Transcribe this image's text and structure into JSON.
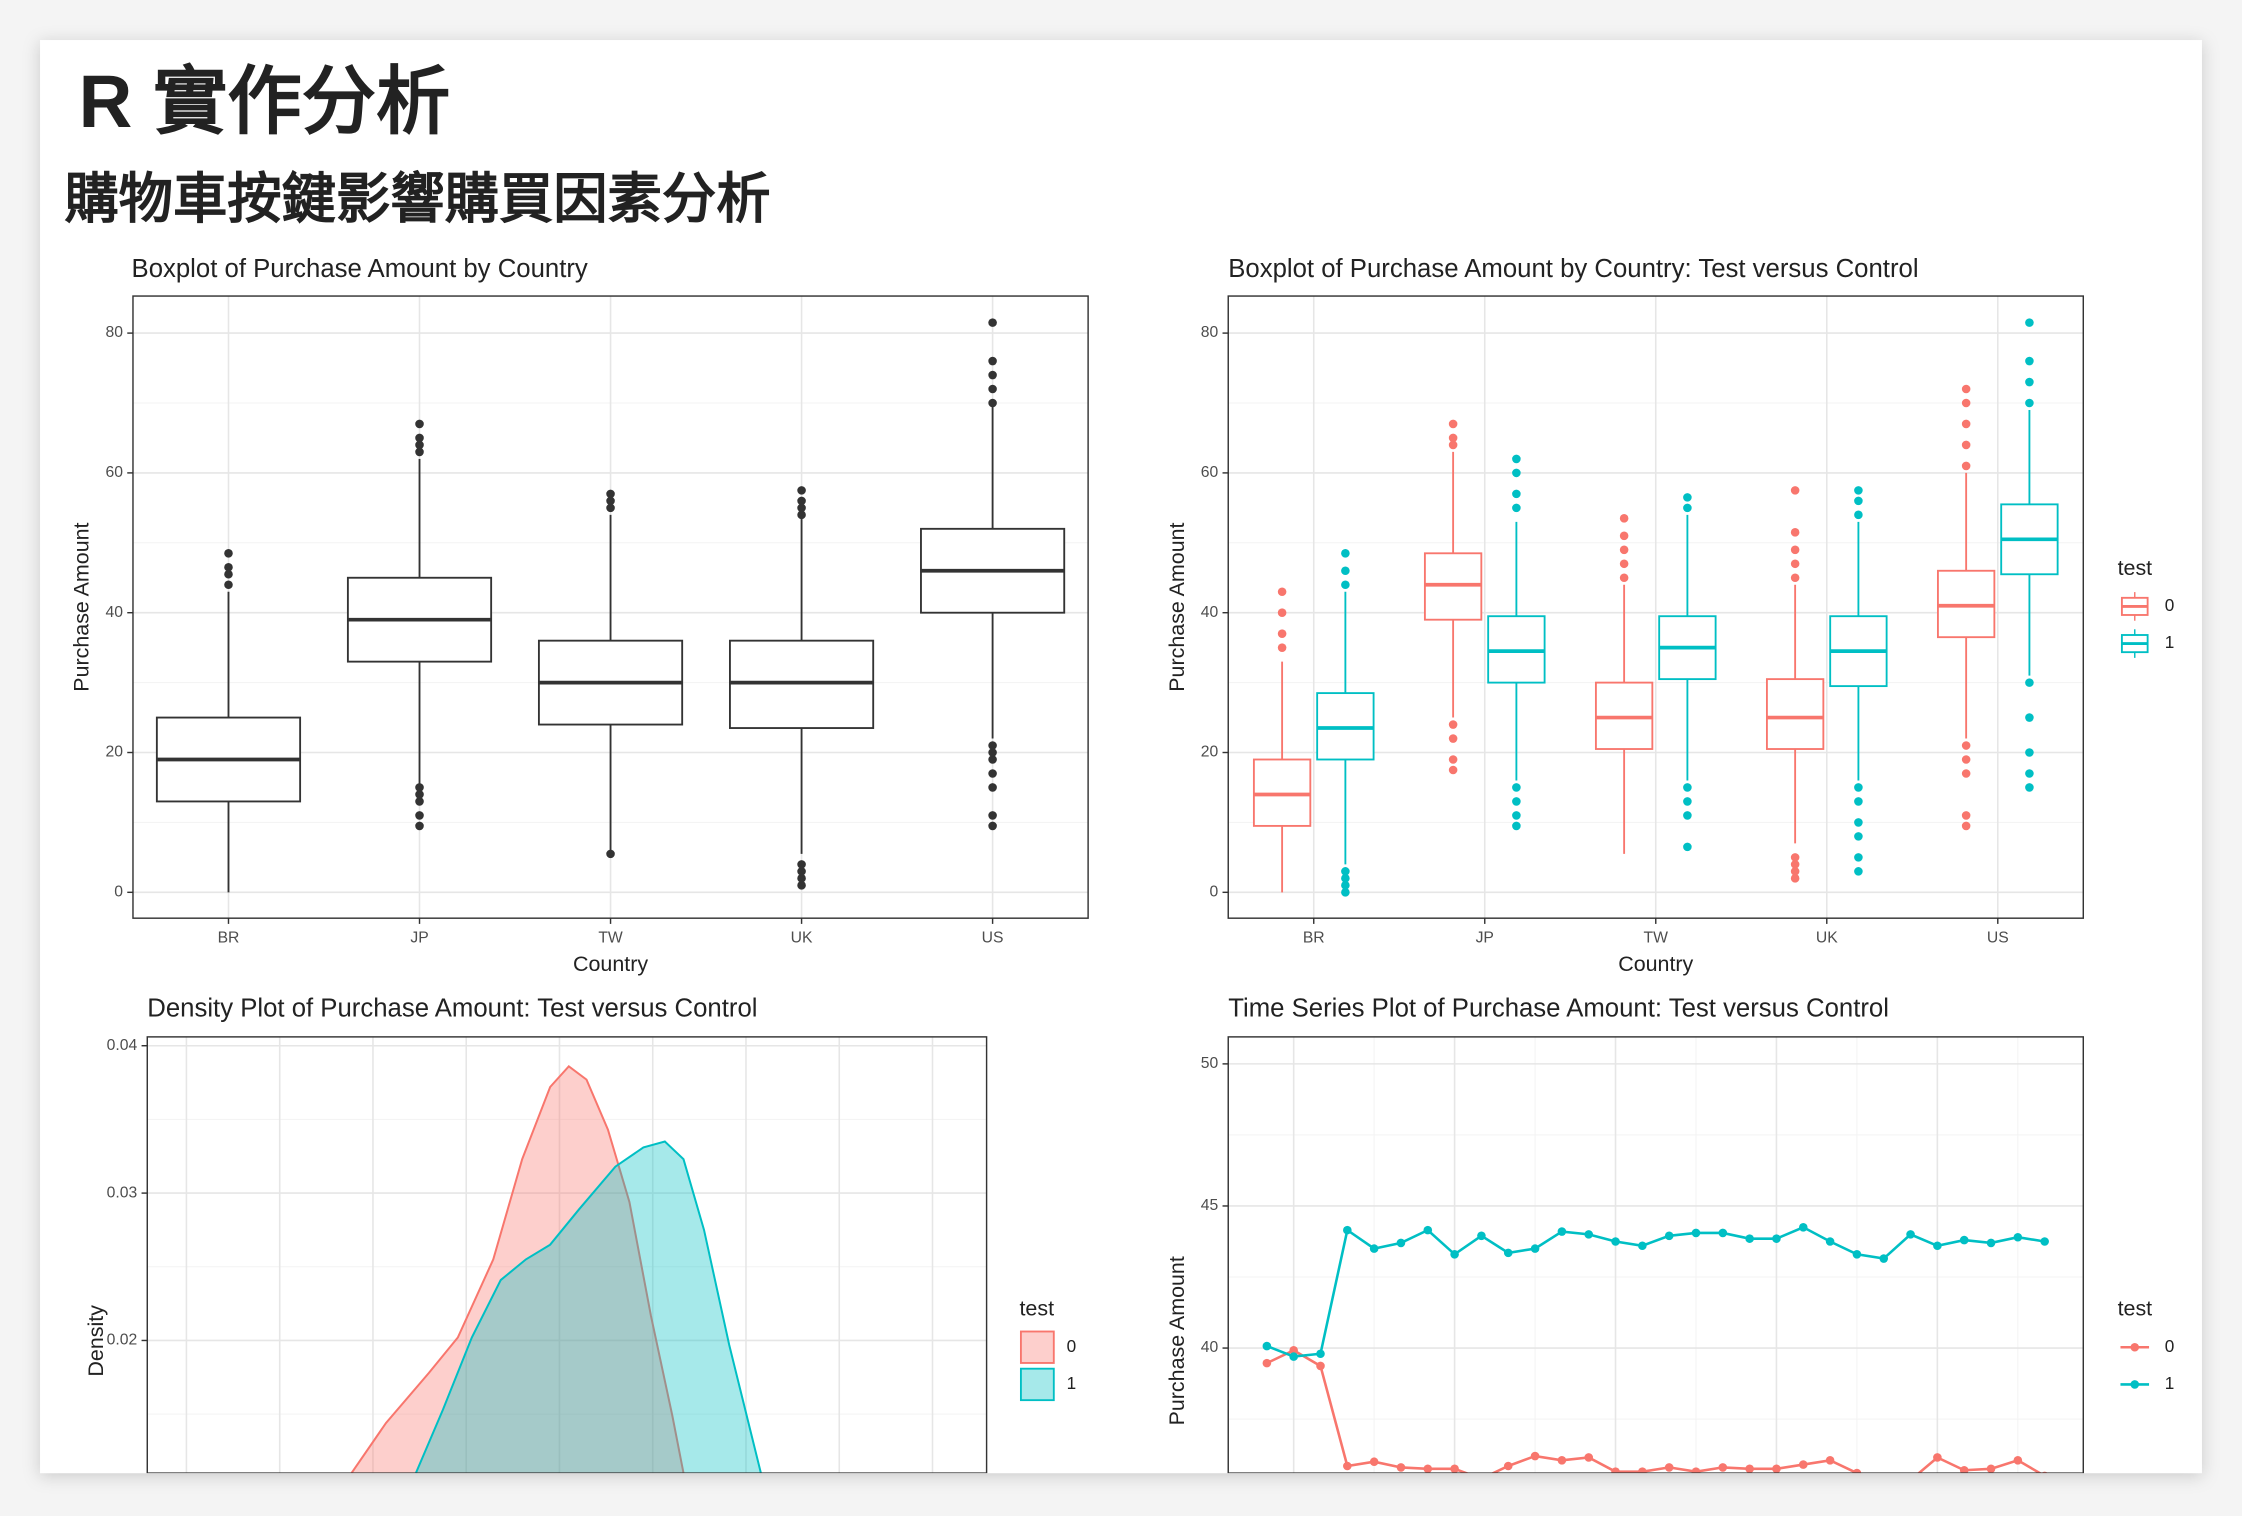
{
  "slide": {
    "title": "R 實作分析",
    "subtitle": "購物車按鍵影響購買因素分析"
  },
  "chart_data": [
    {
      "type": "boxplot",
      "title": "Boxplot of Purchase Amount by Country",
      "x_label": "Country",
      "y_label": "Purchase Amount",
      "categories": [
        "BR",
        "JP",
        "TW",
        "UK",
        "US"
      ],
      "ylim": [
        -3.7,
        85.3
      ],
      "yticks": [
        0,
        20,
        40,
        60,
        80
      ],
      "yminor": [
        10,
        30,
        50,
        70
      ],
      "series": [
        {
          "color": "#333333",
          "boxes": [
            {
              "min": 0,
              "q1": 13,
              "median": 19,
              "q3": 25,
              "max": 43,
              "outliers": [
                44,
                45.5,
                46.5,
                48.5
              ]
            },
            {
              "min": 15,
              "q1": 33,
              "median": 39,
              "q3": 45,
              "max": 62,
              "outliers": [
                9.5,
                11,
                13,
                14,
                15,
                63,
                64,
                65,
                67
              ]
            },
            {
              "min": 6,
              "q1": 24,
              "median": 30,
              "q3": 36,
              "max": 54,
              "outliers": [
                5.5,
                55,
                56,
                57
              ]
            },
            {
              "min": 5.5,
              "q1": 23.5,
              "median": 30,
              "q3": 36,
              "max": 53.5,
              "outliers": [
                1,
                2,
                3,
                4,
                54,
                55,
                56,
                57.5
              ]
            },
            {
              "min": 22,
              "q1": 40,
              "median": 46,
              "q3": 52,
              "max": 69.5,
              "outliers": [
                9.5,
                11,
                15,
                17,
                19,
                20,
                21,
                70,
                72,
                74,
                76,
                81.5
              ]
            }
          ]
        }
      ]
    },
    {
      "type": "boxplot",
      "title": "Boxplot of Purchase Amount by Country: Test versus Control",
      "x_label": "Country",
      "y_label": "Purchase Amount",
      "categories": [
        "BR",
        "JP",
        "TW",
        "UK",
        "US"
      ],
      "legend_title": "test",
      "ylim": [
        -3.7,
        85.3
      ],
      "yticks": [
        0,
        20,
        40,
        60,
        80
      ],
      "yminor": [
        10,
        30,
        50,
        70
      ],
      "series": [
        {
          "name": "0",
          "color": "#F8766D",
          "boxes": [
            {
              "min": 0,
              "q1": 9.5,
              "median": 14,
              "q3": 19,
              "max": 33,
              "outliers": [
                35,
                37,
                40,
                43
              ]
            },
            {
              "min": 25,
              "q1": 39,
              "median": 44,
              "q3": 48.5,
              "max": 63,
              "outliers": [
                17.5,
                19,
                22,
                24,
                64,
                65,
                67
              ]
            },
            {
              "min": 5.5,
              "q1": 20.5,
              "median": 25,
              "q3": 30,
              "max": 44,
              "outliers": [
                45,
                47,
                49,
                51,
                53.5
              ]
            },
            {
              "min": 7,
              "q1": 20.5,
              "median": 25,
              "q3": 30.5,
              "max": 44,
              "outliers": [
                2,
                3,
                4,
                5,
                45,
                47,
                49,
                51.5,
                57.5
              ]
            },
            {
              "min": 22,
              "q1": 36.5,
              "median": 41,
              "q3": 46,
              "max": 60,
              "outliers": [
                9.5,
                11,
                17,
                19,
                21,
                61,
                64,
                67,
                70,
                72
              ]
            }
          ]
        },
        {
          "name": "1",
          "color": "#00BFC4",
          "boxes": [
            {
              "min": 4,
              "q1": 19,
              "median": 23.5,
              "q3": 28.5,
              "max": 43,
              "outliers": [
                0,
                1,
                2,
                3,
                44,
                46,
                48.5
              ]
            },
            {
              "min": 16,
              "q1": 30,
              "median": 34.5,
              "q3": 39.5,
              "max": 53,
              "outliers": [
                9.5,
                11,
                13,
                15,
                55,
                57,
                60,
                62
              ]
            },
            {
              "min": 16,
              "q1": 30.5,
              "median": 35,
              "q3": 39.5,
              "max": 54,
              "outliers": [
                6.5,
                11,
                13,
                15,
                55,
                56.5
              ]
            },
            {
              "min": 16,
              "q1": 29.5,
              "median": 34.5,
              "q3": 39.5,
              "max": 53,
              "outliers": [
                3,
                5,
                8,
                10,
                13,
                15,
                54,
                56,
                57.5
              ]
            },
            {
              "min": 31,
              "q1": 45.5,
              "median": 50.5,
              "q3": 55.5,
              "max": 69,
              "outliers": [
                15,
                17,
                20,
                25,
                30,
                70,
                73,
                76,
                81.5
              ]
            }
          ]
        }
      ]
    },
    {
      "type": "density",
      "title": "Density Plot of Purchase Amount: Test versus Control",
      "y_label": "Density",
      "legend_title": "test",
      "xlim": [
        -4.2,
        85.8
      ],
      "xgrid": [
        0,
        10,
        20,
        30,
        40,
        50,
        60,
        70,
        80
      ],
      "ylim": [
        0.011,
        0.0406
      ],
      "yticks": [
        0.02,
        0.03,
        0.04
      ],
      "yminor": [
        0.015,
        0.025,
        0.035
      ],
      "series": [
        {
          "name": "0",
          "color": "#F8766D",
          "x": [
            17.7,
            21.4,
            26.0,
            29.1,
            32.9,
            36.0,
            39.0,
            41.0,
            42.9,
            45.2,
            47.5,
            49.8,
            52.1,
            53.3
          ],
          "values": [
            0.011,
            0.0144,
            0.0178,
            0.0202,
            0.0255,
            0.0323,
            0.0372,
            0.0386,
            0.0377,
            0.0343,
            0.0294,
            0.0217,
            0.0149,
            0.011
          ]
        },
        {
          "name": "1",
          "color": "#00BFC4",
          "x": [
            24.6,
            27.5,
            30.6,
            33.7,
            36.4,
            39.0,
            42.1,
            46.0,
            49.0,
            51.3,
            53.3,
            55.5,
            58.2,
            61.6
          ],
          "values": [
            0.011,
            0.0153,
            0.0202,
            0.0241,
            0.0255,
            0.0265,
            0.0289,
            0.0318,
            0.0331,
            0.0335,
            0.0323,
            0.0275,
            0.0197,
            0.011
          ]
        }
      ]
    },
    {
      "type": "line",
      "title": "Time Series Plot of Purchase Amount: Test versus Control",
      "y_label": "Purchase Amount",
      "legend_title": "test",
      "x": [
        1,
        2,
        3,
        4,
        5,
        6,
        7,
        8,
        9,
        10,
        11,
        12,
        13,
        14,
        15,
        16,
        17,
        18,
        19,
        20,
        21,
        22,
        23,
        24,
        25,
        26,
        27,
        28,
        29,
        30
      ],
      "xlim": [
        -0.44,
        31.44
      ],
      "xgrid": [
        2,
        8,
        14,
        20,
        26
      ],
      "xminor": [
        5,
        11,
        17,
        23,
        29
      ],
      "ylim": [
        35.6,
        50.95
      ],
      "yticks": [
        40,
        45,
        50
      ],
      "yminor": [
        37.5,
        42.5,
        47.5
      ],
      "series": [
        {
          "name": "0",
          "color": "#F8766D",
          "values": [
            39.47,
            39.92,
            39.37,
            35.85,
            36.0,
            35.8,
            35.75,
            35.75,
            35.4,
            35.85,
            36.2,
            36.05,
            36.15,
            35.65,
            35.65,
            35.8,
            35.65,
            35.8,
            35.75,
            35.75,
            35.9,
            36.05,
            35.6,
            35.35,
            35.35,
            36.15,
            35.7,
            35.75,
            36.05,
            35.5
          ]
        },
        {
          "name": "1",
          "color": "#00BFC4",
          "values": [
            40.07,
            39.7,
            39.8,
            44.15,
            43.5,
            43.7,
            44.15,
            43.3,
            43.95,
            43.35,
            43.5,
            44.1,
            44.0,
            43.75,
            43.6,
            43.95,
            44.05,
            44.05,
            43.85,
            43.85,
            44.25,
            43.75,
            43.3,
            43.15,
            44.0,
            43.6,
            43.8,
            43.7,
            43.9,
            43.75
          ]
        }
      ]
    }
  ]
}
